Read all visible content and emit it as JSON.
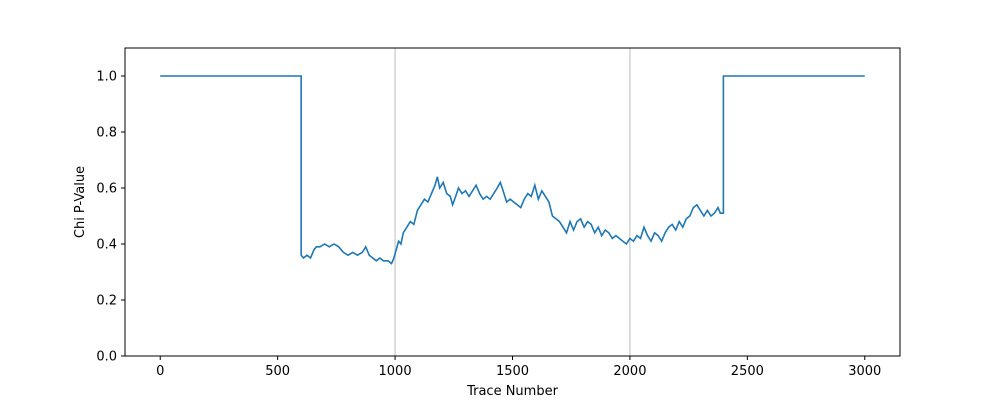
{
  "chart_data": {
    "type": "line",
    "title": "",
    "xlabel": "Trace Number",
    "ylabel": "Chi P-Value",
    "xlim": [
      -150,
      3150
    ],
    "ylim": [
      0.0,
      1.1
    ],
    "xticks": [
      0,
      500,
      1000,
      1500,
      2000,
      2500,
      3000
    ],
    "yticks": [
      0.0,
      0.2,
      0.4,
      0.6,
      0.8,
      1.0
    ],
    "xtick_labels": [
      "0",
      "500",
      "1000",
      "1500",
      "2000",
      "2500",
      "3000"
    ],
    "ytick_labels": [
      "0.0",
      "0.2",
      "0.4",
      "0.6",
      "0.8",
      "1.0"
    ],
    "vlines": [
      1000,
      2000
    ],
    "grid": false,
    "legend": "none",
    "colors": {
      "line": "#1f77b4",
      "vline": "#d3d3d3",
      "axes": "#000000"
    },
    "series": [
      {
        "values": [
          [
            0,
            1.0
          ],
          [
            600,
            1.0
          ],
          [
            600,
            0.36
          ],
          [
            610,
            0.35
          ],
          [
            625,
            0.36
          ],
          [
            640,
            0.35
          ],
          [
            655,
            0.38
          ],
          [
            665,
            0.39
          ],
          [
            680,
            0.39
          ],
          [
            700,
            0.4
          ],
          [
            720,
            0.39
          ],
          [
            740,
            0.4
          ],
          [
            760,
            0.39
          ],
          [
            780,
            0.37
          ],
          [
            800,
            0.36
          ],
          [
            820,
            0.37
          ],
          [
            840,
            0.36
          ],
          [
            860,
            0.37
          ],
          [
            875,
            0.39
          ],
          [
            890,
            0.36
          ],
          [
            905,
            0.35
          ],
          [
            920,
            0.34
          ],
          [
            935,
            0.35
          ],
          [
            950,
            0.34
          ],
          [
            970,
            0.34
          ],
          [
            985,
            0.33
          ],
          [
            995,
            0.35
          ],
          [
            1005,
            0.38
          ],
          [
            1015,
            0.41
          ],
          [
            1025,
            0.4
          ],
          [
            1035,
            0.44
          ],
          [
            1050,
            0.46
          ],
          [
            1065,
            0.48
          ],
          [
            1080,
            0.47
          ],
          [
            1095,
            0.52
          ],
          [
            1110,
            0.54
          ],
          [
            1125,
            0.56
          ],
          [
            1140,
            0.55
          ],
          [
            1155,
            0.58
          ],
          [
            1170,
            0.61
          ],
          [
            1180,
            0.64
          ],
          [
            1190,
            0.6
          ],
          [
            1205,
            0.62
          ],
          [
            1220,
            0.58
          ],
          [
            1235,
            0.57
          ],
          [
            1245,
            0.54
          ],
          [
            1258,
            0.57
          ],
          [
            1270,
            0.6
          ],
          [
            1285,
            0.58
          ],
          [
            1300,
            0.59
          ],
          [
            1315,
            0.57
          ],
          [
            1330,
            0.59
          ],
          [
            1345,
            0.61
          ],
          [
            1360,
            0.58
          ],
          [
            1375,
            0.56
          ],
          [
            1390,
            0.57
          ],
          [
            1405,
            0.56
          ],
          [
            1420,
            0.58
          ],
          [
            1435,
            0.6
          ],
          [
            1448,
            0.62
          ],
          [
            1460,
            0.59
          ],
          [
            1475,
            0.55
          ],
          [
            1490,
            0.56
          ],
          [
            1505,
            0.55
          ],
          [
            1520,
            0.54
          ],
          [
            1535,
            0.53
          ],
          [
            1550,
            0.56
          ],
          [
            1565,
            0.58
          ],
          [
            1580,
            0.57
          ],
          [
            1595,
            0.61
          ],
          [
            1610,
            0.56
          ],
          [
            1625,
            0.59
          ],
          [
            1640,
            0.57
          ],
          [
            1655,
            0.55
          ],
          [
            1670,
            0.5
          ],
          [
            1685,
            0.49
          ],
          [
            1700,
            0.48
          ],
          [
            1715,
            0.46
          ],
          [
            1730,
            0.44
          ],
          [
            1745,
            0.48
          ],
          [
            1760,
            0.45
          ],
          [
            1775,
            0.48
          ],
          [
            1790,
            0.49
          ],
          [
            1805,
            0.46
          ],
          [
            1820,
            0.48
          ],
          [
            1835,
            0.47
          ],
          [
            1850,
            0.44
          ],
          [
            1865,
            0.46
          ],
          [
            1880,
            0.43
          ],
          [
            1895,
            0.45
          ],
          [
            1910,
            0.44
          ],
          [
            1925,
            0.42
          ],
          [
            1940,
            0.43
          ],
          [
            1955,
            0.42
          ],
          [
            1970,
            0.41
          ],
          [
            1985,
            0.4
          ],
          [
            2000,
            0.42
          ],
          [
            2015,
            0.41
          ],
          [
            2030,
            0.43
          ],
          [
            2045,
            0.42
          ],
          [
            2060,
            0.46
          ],
          [
            2075,
            0.43
          ],
          [
            2090,
            0.41
          ],
          [
            2105,
            0.44
          ],
          [
            2120,
            0.43
          ],
          [
            2135,
            0.41
          ],
          [
            2150,
            0.44
          ],
          [
            2165,
            0.46
          ],
          [
            2180,
            0.47
          ],
          [
            2195,
            0.45
          ],
          [
            2210,
            0.48
          ],
          [
            2225,
            0.46
          ],
          [
            2240,
            0.49
          ],
          [
            2255,
            0.5
          ],
          [
            2270,
            0.53
          ],
          [
            2285,
            0.54
          ],
          [
            2300,
            0.52
          ],
          [
            2315,
            0.5
          ],
          [
            2330,
            0.52
          ],
          [
            2345,
            0.5
          ],
          [
            2360,
            0.51
          ],
          [
            2375,
            0.53
          ],
          [
            2385,
            0.51
          ],
          [
            2398,
            0.51
          ],
          [
            2398,
            1.0
          ],
          [
            3000,
            1.0
          ]
        ]
      }
    ]
  }
}
